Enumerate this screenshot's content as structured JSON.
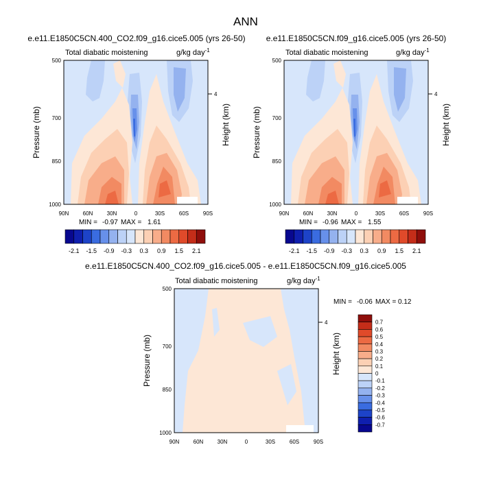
{
  "figure_title": "ANN",
  "colors": {
    "neg": [
      "#08088f",
      "#0f1fae",
      "#1d43c8",
      "#3a6ce0",
      "#6790ea",
      "#94b2ef",
      "#bcd2f7",
      "#d7e6fb"
    ],
    "pos": [
      "#fde7d6",
      "#fcd0b4",
      "#f8ad8a",
      "#f28a62",
      "#ec6a43",
      "#e04a2a",
      "#c42d19",
      "#8f0e0b"
    ]
  },
  "chart_data": [
    {
      "type": "heatmap",
      "title": "e.e11.E1850C5CN.400_CO2.f09_g16.cice5.005 (yrs 26-50)",
      "variable": "Total diabatic moistening",
      "units": "g/kg day",
      "units_exp": "-1",
      "ylabel": "Pressure (mb)",
      "ylabel_right": "Height (km)",
      "y_ticks": [
        "500",
        "700",
        "850",
        "1000"
      ],
      "y_right_ticks": [
        "4"
      ],
      "x_ticks": [
        "90N",
        "60N",
        "30N",
        "0",
        "30S",
        "60S",
        "90S"
      ],
      "min_label": "MIN =",
      "min_value": "-0.97",
      "max_label": "MAX =",
      "max_value": "1.61",
      "colorbar_labels": [
        "-2.1",
        "-1.5",
        "-0.9",
        "-0.3",
        "0.3",
        "0.9",
        "1.5",
        "2.1"
      ]
    },
    {
      "type": "heatmap",
      "title": "e.e11.E1850C5CN.f09_g16.cice5.005 (yrs 26-50)",
      "variable": "Total diabatic moistening",
      "units": "g/kg day",
      "units_exp": "-1",
      "ylabel": "Pressure (mb)",
      "ylabel_right": "Height (km)",
      "y_ticks": [
        "500",
        "700",
        "850",
        "1000"
      ],
      "y_right_ticks": [
        "4"
      ],
      "x_ticks": [
        "90N",
        "60N",
        "30N",
        "0",
        "30S",
        "60S",
        "90S"
      ],
      "min_label": "MIN =",
      "min_value": "-0.96",
      "max_label": "MAX =",
      "max_value": "1.55",
      "colorbar_labels": [
        "-2.1",
        "-1.5",
        "-0.9",
        "-0.3",
        "0.3",
        "0.9",
        "1.5",
        "2.1"
      ]
    },
    {
      "type": "heatmap",
      "title": "e.e11.E1850C5CN.400_CO2.f09_g16.cice5.005 - e.e11.E1850C5CN.f09_g16.cice5.005",
      "variable": "Total diabatic moistening",
      "units": "g/kg day",
      "units_exp": "-1",
      "ylabel": "Pressure (mb)",
      "ylabel_right": "Height (km)",
      "y_ticks": [
        "500",
        "700",
        "850",
        "1000"
      ],
      "y_right_ticks": [
        "4"
      ],
      "x_ticks": [
        "90N",
        "60N",
        "30N",
        "0",
        "30S",
        "60S",
        "90S"
      ],
      "min_label": "MIN =",
      "min_value": "-0.06",
      "max_label": "MAX =",
      "max_value": "0.12",
      "colorbar_labels": [
        "0.7",
        "0.6",
        "0.5",
        "0.4",
        "0.3",
        "0.2",
        "0.1",
        "0",
        "-0.1",
        "-0.2",
        "-0.3",
        "-0.4",
        "-0.5",
        "-0.6",
        "-0.7"
      ]
    }
  ]
}
